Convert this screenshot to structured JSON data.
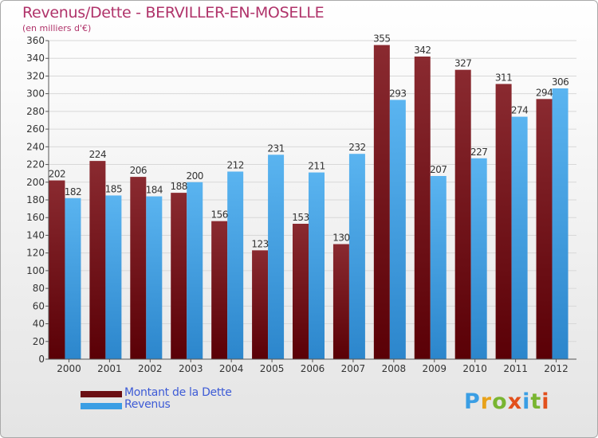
{
  "header": {
    "title": "Revenus/Dette - BERVILLER-EN-MOSELLE",
    "subtitle": "(en milliers d'€)"
  },
  "legend": {
    "debt_label": "Montant de la Dette",
    "revenue_label": "Revenus"
  },
  "logo": {
    "text": "Proxiti"
  },
  "colors": {
    "title": "#b0336a",
    "debt": "#6b0f14",
    "revenue": "#3a9ee4",
    "legend_text": "#3d5bd6",
    "grid": "#d8d8d8"
  },
  "chart_data": {
    "type": "bar",
    "title": "Revenus/Dette - BERVILLER-EN-MOSELLE",
    "ylabel": "(en milliers d'€)",
    "xlabel": "",
    "categories": [
      "2000",
      "2001",
      "2002",
      "2003",
      "2004",
      "2005",
      "2006",
      "2007",
      "2008",
      "2009",
      "2010",
      "2011",
      "2012"
    ],
    "series": [
      {
        "name": "Montant de la Dette",
        "values": [
          202,
          224,
          206,
          188,
          156,
          123,
          153,
          130,
          355,
          342,
          327,
          311,
          294
        ]
      },
      {
        "name": "Revenus",
        "values": [
          182,
          185,
          184,
          200,
          212,
          231,
          211,
          232,
          293,
          207,
          227,
          274,
          306
        ]
      }
    ],
    "ylim": [
      0,
      360
    ],
    "yticks": [
      0,
      20,
      40,
      60,
      80,
      100,
      120,
      140,
      160,
      180,
      200,
      220,
      240,
      260,
      280,
      300,
      320,
      340,
      360
    ],
    "grid": true,
    "legend_position": "bottom-left"
  }
}
